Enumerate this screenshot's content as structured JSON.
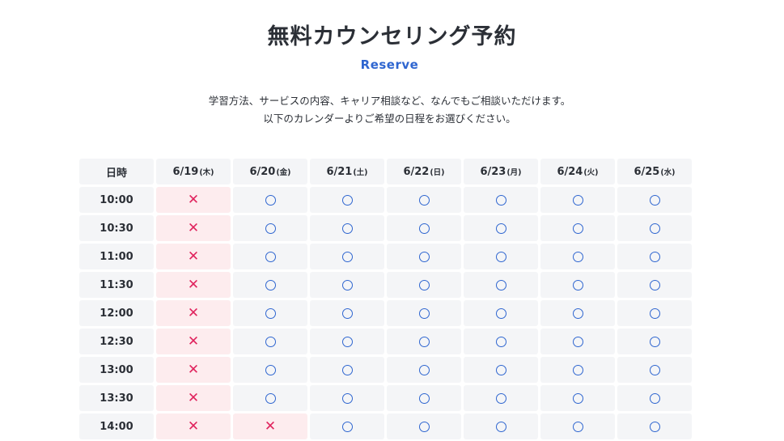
{
  "header": {
    "title": "無料カウンセリング予約",
    "subtitle": "Reserve",
    "description_line1": "学習方法、サービスの内容、キャリア相談など、なんでもご相談いただけます。",
    "description_line2": "以下のカレンダーよりご希望の日程をお選びください。"
  },
  "calendar": {
    "corner_label": "日時",
    "days": [
      {
        "date": "6/19",
        "dow": "(木)"
      },
      {
        "date": "6/20",
        "dow": "(金)"
      },
      {
        "date": "6/21",
        "dow": "(土)"
      },
      {
        "date": "6/22",
        "dow": "(日)"
      },
      {
        "date": "6/23",
        "dow": "(月)"
      },
      {
        "date": "6/24",
        "dow": "(火)"
      },
      {
        "date": "6/25",
        "dow": "(水)"
      }
    ],
    "available_symbol": "○",
    "unavailable_symbol": "×",
    "colors": {
      "available": "#2f66d0",
      "unavailable": "#e0245e",
      "unavailable_bg": "#fdecee",
      "cell_bg": "#f4f5f7"
    },
    "slots": [
      {
        "time": "10:00",
        "availability": [
          false,
          true,
          true,
          true,
          true,
          true,
          true
        ]
      },
      {
        "time": "10:30",
        "availability": [
          false,
          true,
          true,
          true,
          true,
          true,
          true
        ]
      },
      {
        "time": "11:00",
        "availability": [
          false,
          true,
          true,
          true,
          true,
          true,
          true
        ]
      },
      {
        "time": "11:30",
        "availability": [
          false,
          true,
          true,
          true,
          true,
          true,
          true
        ]
      },
      {
        "time": "12:00",
        "availability": [
          false,
          true,
          true,
          true,
          true,
          true,
          true
        ]
      },
      {
        "time": "12:30",
        "availability": [
          false,
          true,
          true,
          true,
          true,
          true,
          true
        ]
      },
      {
        "time": "13:00",
        "availability": [
          false,
          true,
          true,
          true,
          true,
          true,
          true
        ]
      },
      {
        "time": "13:30",
        "availability": [
          false,
          true,
          true,
          true,
          true,
          true,
          true
        ]
      },
      {
        "time": "14:00",
        "availability": [
          false,
          false,
          true,
          true,
          true,
          true,
          true
        ]
      }
    ]
  }
}
